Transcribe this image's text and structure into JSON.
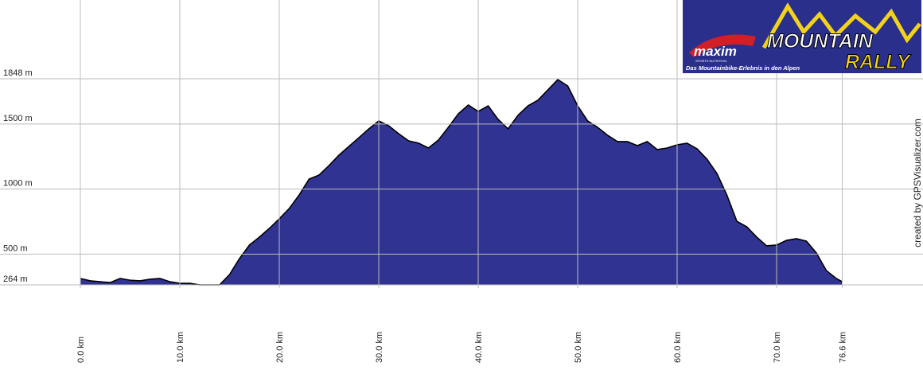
{
  "chart_data": {
    "type": "area",
    "color": "#313392",
    "line_color": "#000000",
    "grid": true,
    "x": [
      0,
      1,
      2,
      3,
      4,
      5,
      6,
      7,
      8,
      9,
      10,
      11,
      12,
      13,
      14,
      15,
      16,
      17,
      18,
      19,
      20,
      21,
      22,
      23,
      24,
      25,
      26,
      27,
      28,
      29,
      30,
      31,
      32,
      33,
      34,
      35,
      36,
      37,
      38,
      39,
      40,
      41,
      42,
      43,
      44,
      45,
      46,
      47,
      48,
      49,
      50,
      51,
      52,
      53,
      54,
      55,
      56,
      57,
      58,
      59,
      60,
      61,
      62,
      63,
      64,
      65,
      66,
      67,
      68,
      69,
      70,
      71,
      72,
      73,
      74,
      75,
      76,
      76.6
    ],
    "values": [
      313,
      295,
      288,
      282,
      313,
      300,
      295,
      307,
      313,
      288,
      276,
      276,
      264,
      264,
      264,
      343,
      466,
      570,
      631,
      698,
      772,
      851,
      955,
      1077,
      1108,
      1181,
      1261,
      1328,
      1395,
      1463,
      1524,
      1487,
      1426,
      1371,
      1353,
      1316,
      1377,
      1475,
      1579,
      1646,
      1597,
      1640,
      1536,
      1463,
      1567,
      1640,
      1683,
      1762,
      1842,
      1793,
      1640,
      1524,
      1475,
      1414,
      1365,
      1365,
      1334,
      1365,
      1304,
      1316,
      1340,
      1353,
      1310,
      1230,
      1120,
      955,
      753,
      710,
      631,
      564,
      570,
      606,
      619,
      600,
      509,
      374,
      313,
      288
    ],
    "xlim": [
      0,
      76.6
    ],
    "ylim": [
      264,
      1848
    ],
    "xticks": [
      {
        "value": 0,
        "label": "0.0 km"
      },
      {
        "value": 10,
        "label": "10.0 km"
      },
      {
        "value": 20,
        "label": "20.0 km"
      },
      {
        "value": 30,
        "label": "30.0 km"
      },
      {
        "value": 40,
        "label": "40.0 km"
      },
      {
        "value": 50,
        "label": "50.0 km"
      },
      {
        "value": 60,
        "label": "60.0 km"
      },
      {
        "value": 70,
        "label": "70.0 km"
      },
      {
        "value": 76.6,
        "label": "76.6 km"
      }
    ],
    "yticks": [
      {
        "value": 264,
        "label": "264 m"
      },
      {
        "value": 500,
        "label": "500 m"
      },
      {
        "value": 1000,
        "label": "1000 m"
      },
      {
        "value": 1500,
        "label": "1500 m"
      },
      {
        "value": 1848,
        "label": "1848 m"
      }
    ],
    "credit": "created by GPSVisualizer.com",
    "logo": {
      "brand": "maxim",
      "brand_sub": "SPORTS NUTRITION",
      "title_1": "MOUNTAIN",
      "title_2": "RALLY",
      "tagline": "Das Mountainbike-Erlebnis in den Alpen"
    }
  }
}
